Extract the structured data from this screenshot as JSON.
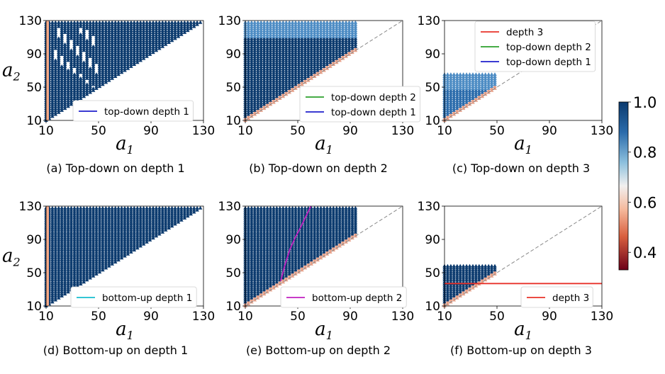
{
  "colorbar": {
    "ticks": [
      "1.0",
      "0.8",
      "0.6",
      "0.4"
    ],
    "tick_values": [
      1.0,
      0.8,
      0.6,
      0.4
    ],
    "range": [
      0.33,
      1.0
    ]
  },
  "chart_data": [
    {
      "type": "scatter",
      "caption": "(a) Top-down on depth 1",
      "xlabel": "a1",
      "ylabel": "a2",
      "xticks": [
        "10",
        "50",
        "90",
        "130"
      ],
      "yticks": [
        "10",
        "50",
        "90",
        "130"
      ],
      "xlim": [
        10,
        130
      ],
      "ylim": [
        10,
        130
      ],
      "region": {
        "lower_bound": "diagonal",
        "max_a2": 130,
        "max_a1": 130,
        "value": 1.0
      },
      "hole": {
        "a1_range": [
          15,
          50
        ],
        "a2_top": 122,
        "a2_bottom": 45
      },
      "reference_diagonal": false,
      "left_edge_strip": true,
      "series": [],
      "legend": [
        {
          "label": "top-down depth 1",
          "color": "#1f1fcc"
        }
      ]
    },
    {
      "type": "scatter",
      "caption": "(b) Top-down on depth 2",
      "xlabel": "a1",
      "ylabel": "a2",
      "xticks": [
        "10",
        "50",
        "90",
        "130"
      ],
      "yticks": [
        "10",
        "50",
        "90",
        "130"
      ],
      "xlim": [
        10,
        130
      ],
      "ylim": [
        10,
        130
      ],
      "region": {
        "lower_bound": "diagonal",
        "max_a2": 130,
        "max_a1": 95,
        "value": 0.94
      },
      "reference_diagonal": true,
      "series": [],
      "legend": [
        {
          "label": "top-down depth 2",
          "color": "#2ca02c"
        },
        {
          "label": "top-down depth 1",
          "color": "#1f1fcc"
        }
      ]
    },
    {
      "type": "scatter",
      "caption": "(c) Top-down on depth 3",
      "xlabel": "a1",
      "ylabel": "a2",
      "xticks": [
        "10",
        "50",
        "90",
        "130"
      ],
      "yticks": [
        "10",
        "50",
        "90",
        "130"
      ],
      "xlim": [
        10,
        130
      ],
      "ylim": [
        10,
        130
      ],
      "region": {
        "lower_bound": "diagonal",
        "max_a2": 66,
        "max_a1": 50,
        "value": 0.85
      },
      "reference_diagonal": true,
      "series": [],
      "legend": [
        {
          "label": "depth 3",
          "color": "#e8322a"
        },
        {
          "label": "top-down depth 2",
          "color": "#2ca02c"
        },
        {
          "label": "top-down depth 1",
          "color": "#1f1fcc"
        }
      ]
    },
    {
      "type": "scatter",
      "caption": "(d) Bottom-up on depth 1",
      "xlabel": "a1",
      "ylabel": "a2",
      "xticks": [
        "10",
        "50",
        "90",
        "130"
      ],
      "yticks": [
        "10",
        "50",
        "90",
        "130"
      ],
      "xlim": [
        10,
        130
      ],
      "ylim": [
        10,
        130
      ],
      "region": {
        "lower_bound": "diagonal",
        "max_a2": 130,
        "max_a1": 130,
        "value": 1.0
      },
      "reference_diagonal": false,
      "left_edge_strip": true,
      "series": [],
      "legend": [
        {
          "label": "bottom-up depth 1",
          "color": "#17becf"
        }
      ]
    },
    {
      "type": "scatter",
      "caption": "(e) Bottom-up on depth 2",
      "xlabel": "a1",
      "ylabel": "a2",
      "xticks": [
        "10",
        "50",
        "90",
        "130"
      ],
      "yticks": [
        "10",
        "50",
        "90",
        "130"
      ],
      "xlim": [
        10,
        130
      ],
      "ylim": [
        10,
        130
      ],
      "region": {
        "lower_bound": "diagonal",
        "max_a2": 130,
        "max_a1": 95,
        "value": 1.0
      },
      "reference_diagonal": true,
      "series": [
        {
          "name": "bottom-up depth 2",
          "color": "#c020c0",
          "x": [
            37,
            40,
            44,
            48,
            52,
            56,
            60
          ],
          "y": [
            40,
            58,
            78,
            92,
            104,
            117,
            130
          ]
        }
      ],
      "legend": [
        {
          "label": "bottom-up depth 2",
          "color": "#c020c0"
        }
      ]
    },
    {
      "type": "scatter",
      "caption": "(f) Bottom-up on depth 3",
      "xlabel": "a1",
      "ylabel": "a2",
      "xticks": [
        "10",
        "50",
        "90",
        "130"
      ],
      "yticks": [
        "10",
        "50",
        "90",
        "130"
      ],
      "xlim": [
        10,
        130
      ],
      "ylim": [
        10,
        130
      ],
      "region": {
        "lower_bound": "diagonal",
        "max_a2": 58,
        "max_a1": 50,
        "value": 1.0
      },
      "reference_diagonal": true,
      "series": [
        {
          "name": "depth 3",
          "color": "#e8322a",
          "x": [
            10,
            130
          ],
          "y": [
            37,
            37
          ]
        }
      ],
      "legend": [
        {
          "label": "depth 3",
          "color": "#e8322a"
        }
      ]
    }
  ]
}
